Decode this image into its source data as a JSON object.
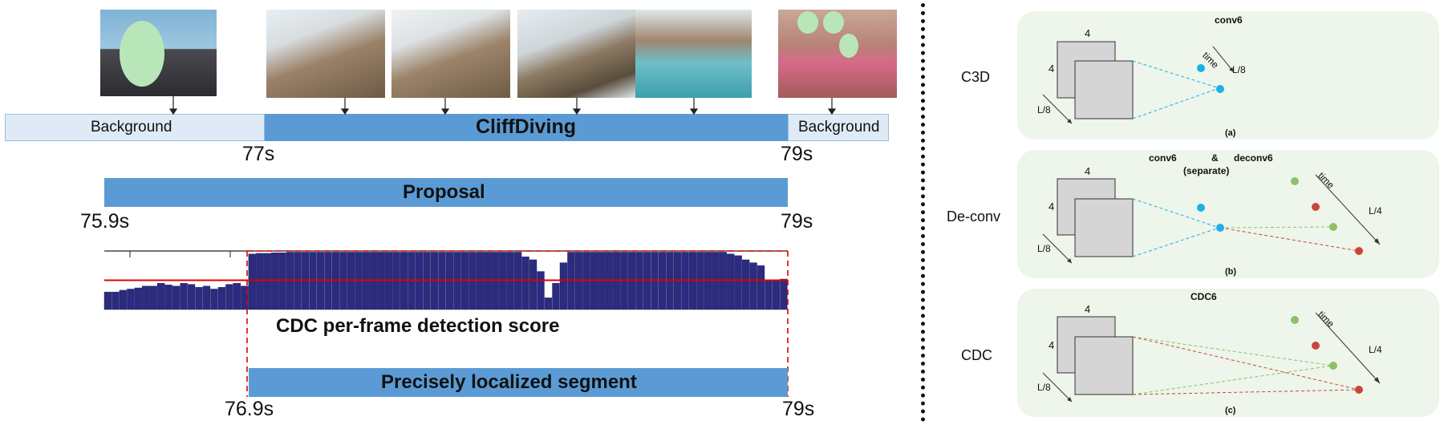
{
  "timeline": {
    "background_left": "Background",
    "action": "CliffDiving",
    "background_right": "Background",
    "t_start": "77s",
    "t_end": "79s"
  },
  "proposal": {
    "label": "Proposal",
    "t_start": "75.9s",
    "t_end": "79s"
  },
  "score": {
    "label": "CDC per-frame detection score",
    "threshold": 0.5,
    "values": [
      0.3,
      0.3,
      0.33,
      0.35,
      0.37,
      0.4,
      0.4,
      0.45,
      0.42,
      0.4,
      0.45,
      0.43,
      0.38,
      0.4,
      0.35,
      0.38,
      0.43,
      0.45,
      0.4,
      0.95,
      0.96,
      0.96,
      0.97,
      0.97,
      0.98,
      0.98,
      0.98,
      0.98,
      0.98,
      0.98,
      0.98,
      0.98,
      0.98,
      0.98,
      0.98,
      0.98,
      0.98,
      0.98,
      0.98,
      0.98,
      0.98,
      0.98,
      0.98,
      0.98,
      0.98,
      0.98,
      0.98,
      0.98,
      0.98,
      0.98,
      0.98,
      0.98,
      0.98,
      0.98,
      0.98,
      0.9,
      0.85,
      0.65,
      0.2,
      0.45,
      0.8,
      0.98,
      0.98,
      0.98,
      0.98,
      0.98,
      0.98,
      0.98,
      0.98,
      0.98,
      0.98,
      0.98,
      0.98,
      0.98,
      0.98,
      0.98,
      0.98,
      0.98,
      0.98,
      0.98,
      0.98,
      0.98,
      0.95,
      0.92,
      0.85,
      0.8,
      0.75,
      0.5,
      0.5,
      0.52
    ]
  },
  "segment": {
    "label": "Precisely localized segment",
    "t_start": "76.9s",
    "t_end": "79s"
  },
  "panels": [
    {
      "row_label": "C3D",
      "title": "conv6",
      "title2": "",
      "caption": "(a)",
      "size_top": "4",
      "size_left": "4",
      "length": "L/8",
      "time": "time",
      "time_length": "L/8"
    },
    {
      "row_label": "De-conv",
      "title": "conv6",
      "amp": "&",
      "title_b": "deconv6",
      "title2": "(separate)",
      "caption": "(b)",
      "size_top": "4",
      "size_left": "4",
      "length": "L/8",
      "time": "time",
      "time_length": "L/4"
    },
    {
      "row_label": "CDC",
      "title": "CDC6",
      "title2": "",
      "caption": "(c)",
      "size_top": "4",
      "size_left": "4",
      "length": "L/8",
      "time": "time",
      "time_length": "L/4"
    }
  ],
  "colors": {
    "bar_blue": "#5b9bd5",
    "bar_light": "#deebf7",
    "score_fill": "#2b2b80",
    "threshold": "#e00000",
    "panel_bg": "#eef5ea",
    "cyan": "#1ab0e8",
    "red": "#c9463d",
    "green": "#8cc06a"
  }
}
